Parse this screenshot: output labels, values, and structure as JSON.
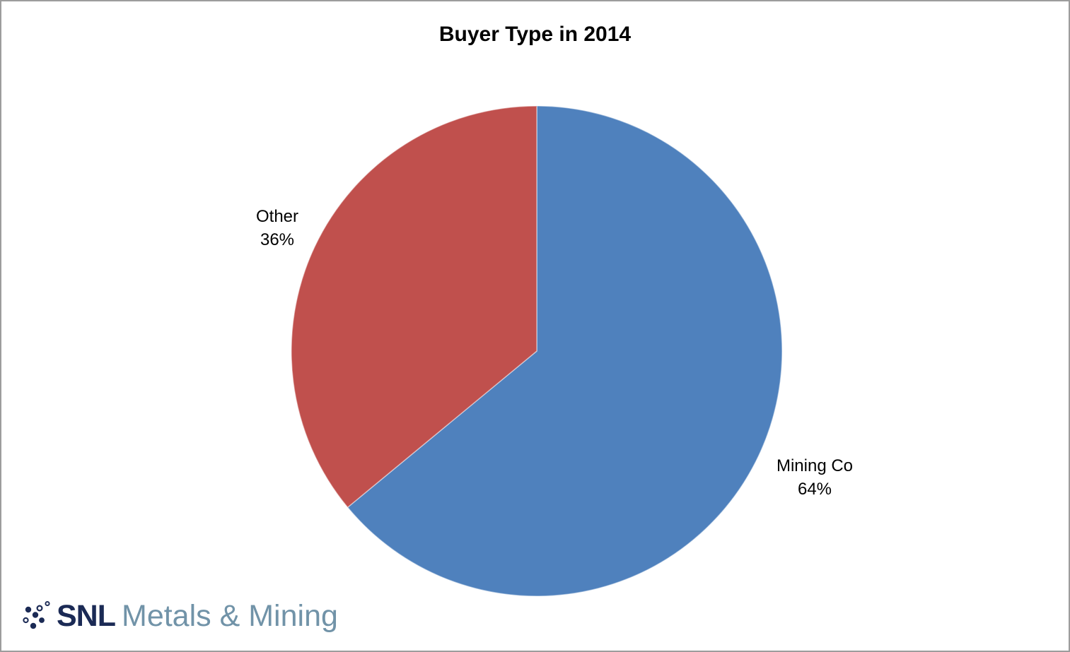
{
  "page": {
    "background": "#ffffff",
    "border_color": "#9c9c9c"
  },
  "chart_data": {
    "type": "pie",
    "title": "Buyer Type in 2014",
    "start_angle_deg": 0,
    "direction": "clockwise",
    "legend": "none",
    "data_labels": "outside: category name + percent",
    "slices": [
      {
        "name": "Mining Co",
        "value": 64,
        "pct_label": "64%",
        "color": "#4F81BD"
      },
      {
        "name": "Other",
        "value": 36,
        "pct_label": "36%",
        "color": "#C0504D"
      }
    ]
  },
  "logo": {
    "snl_text": "SNL",
    "suffix_text": "Metals & Mining",
    "snl_color": "#1B2A55",
    "suffix_color": "#7193A8",
    "dots_color": "#1B2A55"
  }
}
